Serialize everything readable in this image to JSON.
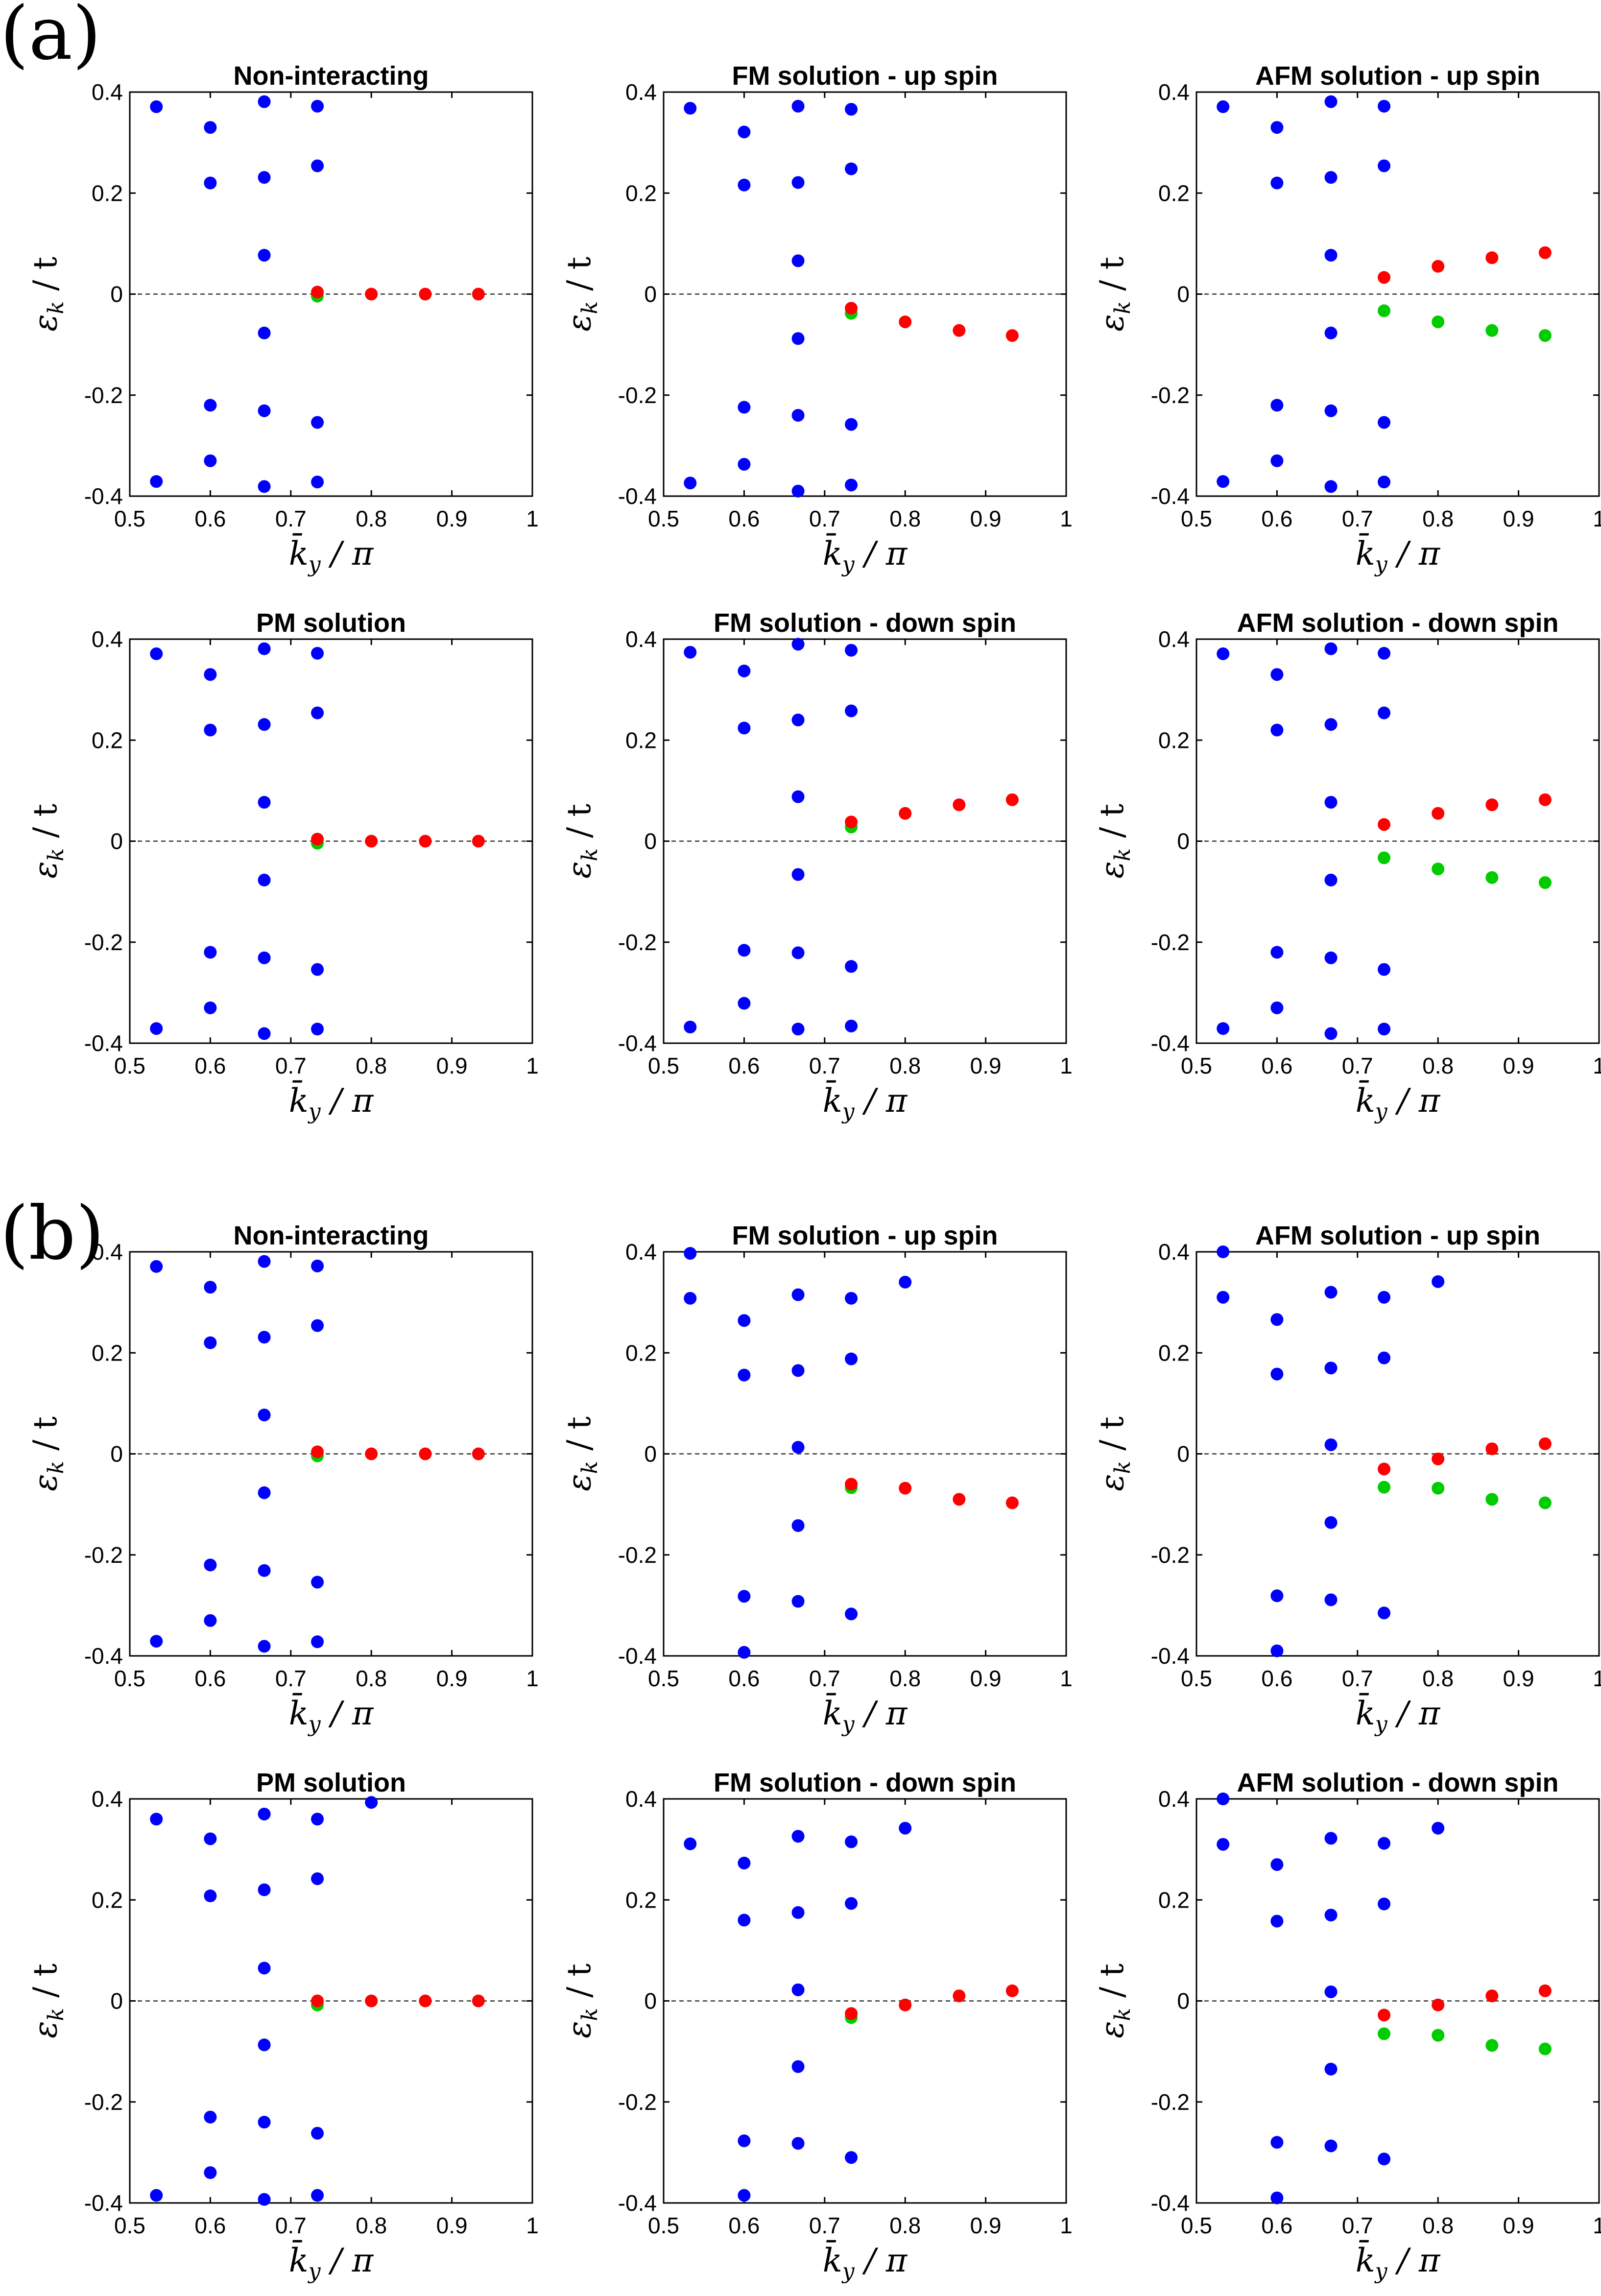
{
  "panel_labels": [
    "(a)",
    "(b)"
  ],
  "colors": {
    "blue": "#0000ff",
    "red": "#ff0000",
    "green": "#00cc00",
    "zero_line": "#555555"
  },
  "axis_labels": {
    "x": "k̄y / π",
    "y": "εk / t"
  },
  "chart_data": [
    {
      "type": "scatter",
      "group": "a",
      "title": "Non-interacting",
      "xlim": [
        0.5,
        1
      ],
      "ylim": [
        -0.4,
        0.4
      ],
      "xticks": [
        "0.5",
        "0.6",
        "0.7",
        "0.8",
        "0.9",
        "1"
      ],
      "yticks": [
        "0.4",
        "0.2",
        "0",
        "-0.2",
        "-0.4"
      ],
      "blue": [
        [
          0.533,
          0.371
        ],
        [
          0.533,
          -0.371
        ],
        [
          0.6,
          0.33
        ],
        [
          0.6,
          0.22
        ],
        [
          0.6,
          -0.22
        ],
        [
          0.6,
          -0.33
        ],
        [
          0.667,
          0.381
        ],
        [
          0.667,
          0.231
        ],
        [
          0.667,
          0.077
        ],
        [
          0.667,
          -0.077
        ],
        [
          0.667,
          -0.231
        ],
        [
          0.667,
          -0.381
        ],
        [
          0.733,
          0.372
        ],
        [
          0.733,
          0.254
        ],
        [
          0.733,
          -0.254
        ],
        [
          0.733,
          -0.372
        ]
      ],
      "green": [
        [
          0.733,
          -0.004
        ]
      ],
      "red": [
        [
          0.733,
          0.004
        ],
        [
          0.8,
          0
        ],
        [
          0.867,
          0
        ],
        [
          0.933,
          0
        ]
      ]
    },
    {
      "type": "scatter",
      "group": "a",
      "title": "FM solution - up spin",
      "xlim": [
        0.5,
        1
      ],
      "ylim": [
        -0.4,
        0.4
      ],
      "xticks": [
        "0.5",
        "0.6",
        "0.7",
        "0.8",
        "0.9",
        "1"
      ],
      "yticks": [
        "0.4",
        "0.2",
        "0",
        "-0.2",
        "-0.4"
      ],
      "blue": [
        [
          0.533,
          0.368
        ],
        [
          0.533,
          -0.374
        ],
        [
          0.6,
          0.321
        ],
        [
          0.6,
          0.216
        ],
        [
          0.6,
          -0.224
        ],
        [
          0.6,
          -0.337
        ],
        [
          0.667,
          0.372
        ],
        [
          0.667,
          0.221
        ],
        [
          0.667,
          0.066
        ],
        [
          0.667,
          -0.088
        ],
        [
          0.667,
          -0.24
        ],
        [
          0.667,
          -0.39
        ],
        [
          0.733,
          0.366
        ],
        [
          0.733,
          0.248
        ],
        [
          0.733,
          -0.258
        ],
        [
          0.733,
          -0.378
        ]
      ],
      "green": [
        [
          0.733,
          -0.038
        ]
      ],
      "red": [
        [
          0.733,
          -0.028
        ],
        [
          0.8,
          -0.055
        ],
        [
          0.867,
          -0.072
        ],
        [
          0.933,
          -0.082
        ]
      ]
    },
    {
      "type": "scatter",
      "group": "a",
      "title": "AFM solution - up spin",
      "xlim": [
        0.5,
        1
      ],
      "ylim": [
        -0.4,
        0.4
      ],
      "xticks": [
        "0.5",
        "0.6",
        "0.7",
        "0.8",
        "0.9",
        "1"
      ],
      "yticks": [
        "0.4",
        "0.2",
        "0",
        "-0.2",
        "-0.4"
      ],
      "blue": [
        [
          0.533,
          0.371
        ],
        [
          0.533,
          -0.371
        ],
        [
          0.6,
          0.33
        ],
        [
          0.6,
          0.22
        ],
        [
          0.6,
          -0.22
        ],
        [
          0.6,
          -0.33
        ],
        [
          0.667,
          0.381
        ],
        [
          0.667,
          0.231
        ],
        [
          0.667,
          0.077
        ],
        [
          0.667,
          -0.077
        ],
        [
          0.667,
          -0.231
        ],
        [
          0.667,
          -0.381
        ],
        [
          0.733,
          0.372
        ],
        [
          0.733,
          0.254
        ],
        [
          0.733,
          -0.254
        ],
        [
          0.733,
          -0.372
        ]
      ],
      "green": [
        [
          0.733,
          -0.033
        ],
        [
          0.8,
          -0.055
        ],
        [
          0.867,
          -0.072
        ],
        [
          0.933,
          -0.082
        ]
      ],
      "red": [
        [
          0.733,
          0.033
        ],
        [
          0.8,
          0.055
        ],
        [
          0.867,
          0.072
        ],
        [
          0.933,
          0.082
        ]
      ]
    },
    {
      "type": "scatter",
      "group": "a",
      "title": "PM solution",
      "xlim": [
        0.5,
        1
      ],
      "ylim": [
        -0.4,
        0.4
      ],
      "xticks": [
        "0.5",
        "0.6",
        "0.7",
        "0.8",
        "0.9",
        "1"
      ],
      "yticks": [
        "0.4",
        "0.2",
        "0",
        "-0.2",
        "-0.4"
      ],
      "blue": [
        [
          0.533,
          0.371
        ],
        [
          0.533,
          -0.371
        ],
        [
          0.6,
          0.33
        ],
        [
          0.6,
          0.22
        ],
        [
          0.6,
          -0.22
        ],
        [
          0.6,
          -0.33
        ],
        [
          0.667,
          0.381
        ],
        [
          0.667,
          0.231
        ],
        [
          0.667,
          0.077
        ],
        [
          0.667,
          -0.077
        ],
        [
          0.667,
          -0.231
        ],
        [
          0.667,
          -0.381
        ],
        [
          0.733,
          0.372
        ],
        [
          0.733,
          0.254
        ],
        [
          0.733,
          -0.254
        ],
        [
          0.733,
          -0.372
        ]
      ],
      "green": [
        [
          0.733,
          -0.004
        ]
      ],
      "red": [
        [
          0.733,
          0.004
        ],
        [
          0.8,
          0
        ],
        [
          0.867,
          0
        ],
        [
          0.933,
          0
        ]
      ]
    },
    {
      "type": "scatter",
      "group": "a",
      "title": "FM solution - down spin",
      "xlim": [
        0.5,
        1
      ],
      "ylim": [
        -0.4,
        0.4
      ],
      "xticks": [
        "0.5",
        "0.6",
        "0.7",
        "0.8",
        "0.9",
        "1"
      ],
      "yticks": [
        "0.4",
        "0.2",
        "0",
        "-0.2",
        "-0.4"
      ],
      "blue": [
        [
          0.533,
          0.374
        ],
        [
          0.533,
          -0.368
        ],
        [
          0.6,
          0.337
        ],
        [
          0.6,
          0.224
        ],
        [
          0.6,
          -0.216
        ],
        [
          0.6,
          -0.321
        ],
        [
          0.667,
          0.39
        ],
        [
          0.667,
          0.24
        ],
        [
          0.667,
          0.088
        ],
        [
          0.667,
          -0.066
        ],
        [
          0.667,
          -0.221
        ],
        [
          0.667,
          -0.372
        ],
        [
          0.733,
          0.378
        ],
        [
          0.733,
          0.258
        ],
        [
          0.733,
          -0.248
        ],
        [
          0.733,
          -0.366
        ]
      ],
      "green": [
        [
          0.733,
          0.028
        ]
      ],
      "red": [
        [
          0.733,
          0.038
        ],
        [
          0.8,
          0.055
        ],
        [
          0.867,
          0.072
        ],
        [
          0.933,
          0.082
        ]
      ]
    },
    {
      "type": "scatter",
      "group": "a",
      "title": "AFM solution - down spin",
      "xlim": [
        0.5,
        1
      ],
      "ylim": [
        -0.4,
        0.4
      ],
      "xticks": [
        "0.5",
        "0.6",
        "0.7",
        "0.8",
        "0.9",
        "1"
      ],
      "yticks": [
        "0.4",
        "0.2",
        "0",
        "-0.2",
        "-0.4"
      ],
      "blue": [
        [
          0.533,
          0.371
        ],
        [
          0.533,
          -0.371
        ],
        [
          0.6,
          0.33
        ],
        [
          0.6,
          0.22
        ],
        [
          0.6,
          -0.22
        ],
        [
          0.6,
          -0.33
        ],
        [
          0.667,
          0.381
        ],
        [
          0.667,
          0.231
        ],
        [
          0.667,
          0.077
        ],
        [
          0.667,
          -0.077
        ],
        [
          0.667,
          -0.231
        ],
        [
          0.667,
          -0.381
        ],
        [
          0.733,
          0.372
        ],
        [
          0.733,
          0.254
        ],
        [
          0.733,
          -0.254
        ],
        [
          0.733,
          -0.372
        ]
      ],
      "green": [
        [
          0.733,
          -0.033
        ],
        [
          0.8,
          -0.055
        ],
        [
          0.867,
          -0.072
        ],
        [
          0.933,
          -0.082
        ]
      ],
      "red": [
        [
          0.733,
          0.033
        ],
        [
          0.8,
          0.055
        ],
        [
          0.867,
          0.072
        ],
        [
          0.933,
          0.082
        ]
      ]
    },
    {
      "type": "scatter",
      "group": "b",
      "title": "Non-interacting",
      "xlim": [
        0.5,
        1
      ],
      "ylim": [
        -0.4,
        0.4
      ],
      "xticks": [
        "0.5",
        "0.6",
        "0.7",
        "0.8",
        "0.9",
        "1"
      ],
      "yticks": [
        "0.4",
        "0.2",
        "0",
        "-0.2",
        "-0.4"
      ],
      "blue": [
        [
          0.533,
          0.371
        ],
        [
          0.533,
          -0.371
        ],
        [
          0.6,
          0.33
        ],
        [
          0.6,
          0.22
        ],
        [
          0.6,
          -0.22
        ],
        [
          0.6,
          -0.33
        ],
        [
          0.667,
          0.381
        ],
        [
          0.667,
          0.231
        ],
        [
          0.667,
          0.077
        ],
        [
          0.667,
          -0.077
        ],
        [
          0.667,
          -0.231
        ],
        [
          0.667,
          -0.381
        ],
        [
          0.733,
          0.372
        ],
        [
          0.733,
          0.254
        ],
        [
          0.733,
          -0.254
        ],
        [
          0.733,
          -0.372
        ]
      ],
      "green": [
        [
          0.733,
          -0.004
        ]
      ],
      "red": [
        [
          0.733,
          0.004
        ],
        [
          0.8,
          0
        ],
        [
          0.867,
          0
        ],
        [
          0.933,
          0
        ]
      ]
    },
    {
      "type": "scatter",
      "group": "b",
      "title": "FM solution - up spin",
      "xlim": [
        0.5,
        1
      ],
      "ylim": [
        -0.4,
        0.4
      ],
      "xticks": [
        "0.5",
        "0.6",
        "0.7",
        "0.8",
        "0.9",
        "1"
      ],
      "yticks": [
        "0.4",
        "0.2",
        "0",
        "-0.2",
        "-0.4"
      ],
      "blue": [
        [
          0.533,
          0.397
        ],
        [
          0.533,
          0.308
        ],
        [
          0.6,
          0.264
        ],
        [
          0.6,
          0.156
        ],
        [
          0.6,
          -0.282
        ],
        [
          0.6,
          -0.393
        ],
        [
          0.667,
          0.315
        ],
        [
          0.667,
          0.165
        ],
        [
          0.667,
          0.013
        ],
        [
          0.667,
          -0.142
        ],
        [
          0.667,
          -0.292
        ],
        [
          0.733,
          0.308
        ],
        [
          0.733,
          0.188
        ],
        [
          0.733,
          -0.317
        ],
        [
          0.8,
          0.34
        ]
      ],
      "green": [
        [
          0.733,
          -0.067
        ]
      ],
      "red": [
        [
          0.733,
          -0.06
        ],
        [
          0.8,
          -0.068
        ],
        [
          0.867,
          -0.09
        ],
        [
          0.933,
          -0.097
        ]
      ]
    },
    {
      "type": "scatter",
      "group": "b",
      "title": "AFM solution - up spin",
      "xlim": [
        0.5,
        1
      ],
      "ylim": [
        -0.4,
        0.4
      ],
      "xticks": [
        "0.5",
        "0.6",
        "0.7",
        "0.8",
        "0.9",
        "1"
      ],
      "yticks": [
        "0.4",
        "0.2",
        "0",
        "-0.2",
        "-0.4"
      ],
      "blue": [
        [
          0.533,
          0.4
        ],
        [
          0.533,
          0.31
        ],
        [
          0.6,
          0.266
        ],
        [
          0.6,
          0.158
        ],
        [
          0.6,
          -0.281
        ],
        [
          0.6,
          -0.39
        ],
        [
          0.667,
          0.32
        ],
        [
          0.667,
          0.17
        ],
        [
          0.667,
          0.018
        ],
        [
          0.667,
          -0.136
        ],
        [
          0.667,
          -0.289
        ],
        [
          0.733,
          0.31
        ],
        [
          0.733,
          0.19
        ],
        [
          0.733,
          -0.315
        ],
        [
          0.8,
          0.341
        ]
      ],
      "green": [
        [
          0.733,
          -0.066
        ],
        [
          0.8,
          -0.068
        ],
        [
          0.867,
          -0.09
        ],
        [
          0.933,
          -0.097
        ]
      ],
      "red": [
        [
          0.733,
          -0.03
        ],
        [
          0.8,
          -0.01
        ],
        [
          0.867,
          0.01
        ],
        [
          0.933,
          0.02
        ]
      ]
    },
    {
      "type": "scatter",
      "group": "b",
      "title": "PM solution",
      "xlim": [
        0.5,
        1
      ],
      "ylim": [
        -0.4,
        0.4
      ],
      "xticks": [
        "0.5",
        "0.6",
        "0.7",
        "0.8",
        "0.9",
        "1"
      ],
      "yticks": [
        "0.4",
        "0.2",
        "0",
        "-0.2",
        "-0.4"
      ],
      "blue": [
        [
          0.533,
          0.36
        ],
        [
          0.533,
          -0.385
        ],
        [
          0.6,
          0.321
        ],
        [
          0.6,
          0.208
        ],
        [
          0.6,
          -0.23
        ],
        [
          0.6,
          -0.34
        ],
        [
          0.667,
          0.37
        ],
        [
          0.667,
          0.22
        ],
        [
          0.667,
          0.065
        ],
        [
          0.667,
          -0.087
        ],
        [
          0.667,
          -0.24
        ],
        [
          0.667,
          -0.393
        ],
        [
          0.733,
          0.36
        ],
        [
          0.733,
          0.242
        ],
        [
          0.733,
          -0.262
        ],
        [
          0.733,
          -0.385
        ],
        [
          0.8,
          0.393
        ]
      ],
      "green": [
        [
          0.733,
          -0.008
        ]
      ],
      "red": [
        [
          0.733,
          0
        ],
        [
          0.8,
          0
        ],
        [
          0.867,
          0
        ],
        [
          0.933,
          0
        ]
      ]
    },
    {
      "type": "scatter",
      "group": "b",
      "title": "FM solution - down spin",
      "xlim": [
        0.5,
        1
      ],
      "ylim": [
        -0.4,
        0.4
      ],
      "xticks": [
        "0.5",
        "0.6",
        "0.7",
        "0.8",
        "0.9",
        "1"
      ],
      "yticks": [
        "0.4",
        "0.2",
        "0",
        "-0.2",
        "-0.4"
      ],
      "blue": [
        [
          0.533,
          0.311
        ],
        [
          0.6,
          0.273
        ],
        [
          0.6,
          0.16
        ],
        [
          0.6,
          -0.277
        ],
        [
          0.6,
          -0.385
        ],
        [
          0.667,
          0.326
        ],
        [
          0.667,
          0.175
        ],
        [
          0.667,
          0.022
        ],
        [
          0.667,
          -0.13
        ],
        [
          0.667,
          -0.282
        ],
        [
          0.733,
          0.315
        ],
        [
          0.733,
          0.193
        ],
        [
          0.733,
          -0.31
        ],
        [
          0.8,
          0.342
        ]
      ],
      "green": [
        [
          0.733,
          -0.033
        ]
      ],
      "red": [
        [
          0.733,
          -0.025
        ],
        [
          0.8,
          -0.008
        ],
        [
          0.867,
          0.01
        ],
        [
          0.933,
          0.02
        ]
      ]
    },
    {
      "type": "scatter",
      "group": "b",
      "title": "AFM solution - down spin",
      "xlim": [
        0.5,
        1
      ],
      "ylim": [
        -0.4,
        0.4
      ],
      "xticks": [
        "0.5",
        "0.6",
        "0.7",
        "0.8",
        "0.9",
        "1"
      ],
      "yticks": [
        "0.4",
        "0.2",
        "0",
        "-0.2",
        "-0.4"
      ],
      "blue": [
        [
          0.533,
          0.4
        ],
        [
          0.533,
          0.31
        ],
        [
          0.6,
          0.27
        ],
        [
          0.6,
          0.158
        ],
        [
          0.6,
          -0.28
        ],
        [
          0.6,
          -0.39
        ],
        [
          0.667,
          0.322
        ],
        [
          0.667,
          0.17
        ],
        [
          0.667,
          0.018
        ],
        [
          0.667,
          -0.135
        ],
        [
          0.667,
          -0.287
        ],
        [
          0.733,
          0.312
        ],
        [
          0.733,
          0.192
        ],
        [
          0.733,
          -0.313
        ],
        [
          0.8,
          0.342
        ]
      ],
      "green": [
        [
          0.733,
          -0.065
        ],
        [
          0.8,
          -0.068
        ],
        [
          0.867,
          -0.088
        ],
        [
          0.933,
          -0.095
        ]
      ],
      "red": [
        [
          0.733,
          -0.028
        ],
        [
          0.8,
          -0.008
        ],
        [
          0.867,
          0.01
        ],
        [
          0.933,
          0.02
        ]
      ]
    }
  ]
}
